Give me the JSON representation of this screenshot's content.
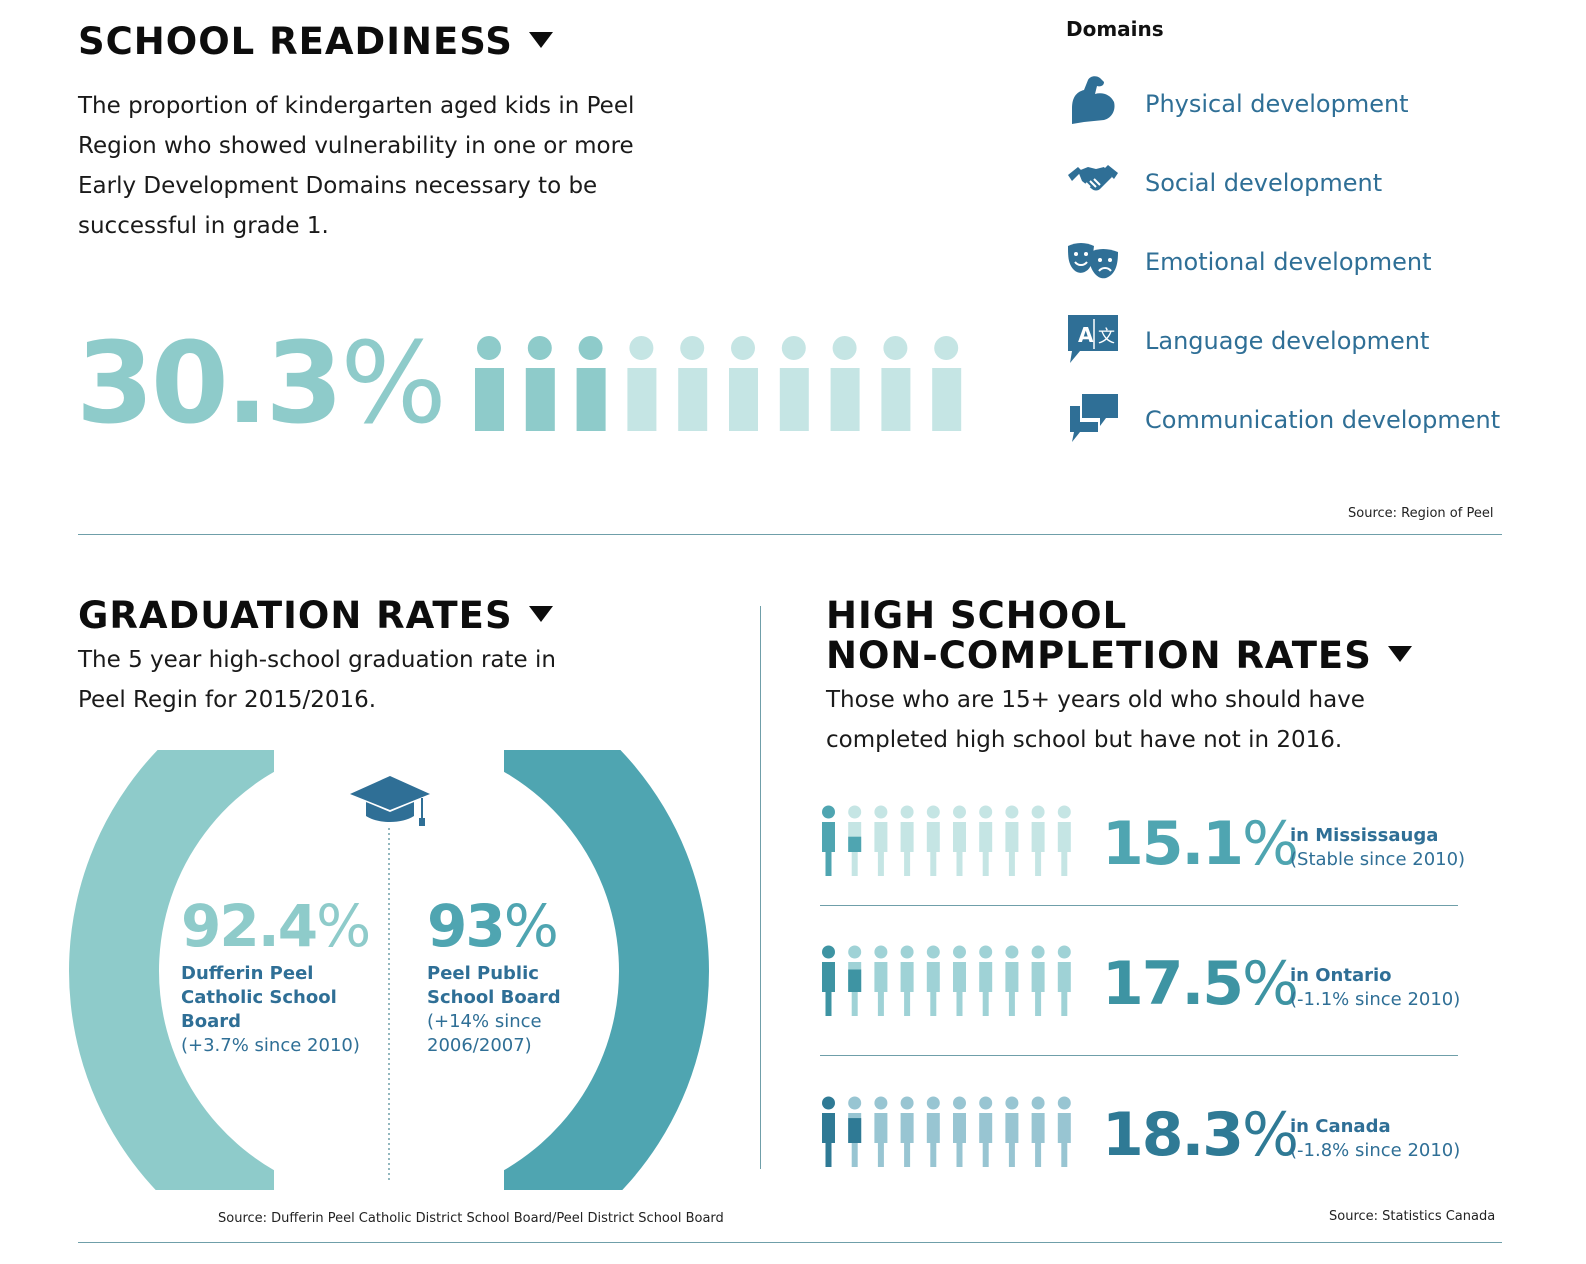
{
  "school_readiness": {
    "title": "SCHOOL READINESS",
    "description": "The proportion of kindergarten aged kids in Peel Region who showed vulnerability in one or more Early Development Domains necessary to be successful in grade 1.",
    "value": "30.3",
    "pct_symbol": "%",
    "figures_total": 10,
    "figures_highlighted": 3,
    "highlight_color": "#8ecbca",
    "base_color": "#c5e5e4",
    "source": "Source: Region of Peel"
  },
  "domains": {
    "title": "Domains",
    "items": [
      {
        "label": "Physical development",
        "icon": "flexed-arm-icon"
      },
      {
        "label": "Social development",
        "icon": "handshake-icon"
      },
      {
        "label": "Emotional development",
        "icon": "theater-masks-icon"
      },
      {
        "label": "Language development",
        "icon": "translate-icon"
      },
      {
        "label": "Communication development",
        "icon": "speech-bubbles-icon"
      }
    ],
    "icon_color": "#2f6f96"
  },
  "graduation": {
    "title": "GRADUATION RATES",
    "description": "The 5 year high-school graduation rate in Peel Regin for 2015/2016.",
    "left": {
      "value": "92.4",
      "pct_symbol": "%",
      "fraction": 0.924,
      "name_line1": "Dufferin Peel",
      "name_line2": "Catholic School",
      "name_line3": "Board",
      "change": "(+3.7% since 2010)",
      "color": "#8ecbca"
    },
    "right": {
      "value": "93",
      "pct_symbol": "%",
      "fraction": 0.93,
      "name_line1": "Peel Public",
      "name_line2": "School Board",
      "change_line1": "(+14% since",
      "change_line2": "2006/2007)",
      "color": "#4fa5b1"
    },
    "track_color": "#f1f1f2",
    "source": "Source: Dufferin Peel Catholic District School Board/Peel District School Board"
  },
  "non_completion": {
    "title_line1": "HIGH SCHOOL",
    "title_line2": "NON-COMPLETION RATES",
    "description": "Those who are 15+ years old who should have completed high school but have not in 2016.",
    "rows": [
      {
        "value": "15.1",
        "pct_symbol": "%",
        "fraction": 0.151,
        "place": "in Mississauga",
        "change": "(Stable since 2010)",
        "dark": "#4fa5b1",
        "light": "#c5e5e4"
      },
      {
        "value": "17.5",
        "pct_symbol": "%",
        "fraction": 0.175,
        "place": "in Ontario",
        "change": "(-1.1% since 2010)",
        "dark": "#3e94a3",
        "light": "#9fd2d6"
      },
      {
        "value": "18.3",
        "pct_symbol": "%",
        "fraction": 0.183,
        "place": "in Canada",
        "change": "(-1.8% since 2010)",
        "dark": "#2f7a95",
        "light": "#98c5d2"
      }
    ],
    "source": "Source: Statistics Canada"
  }
}
